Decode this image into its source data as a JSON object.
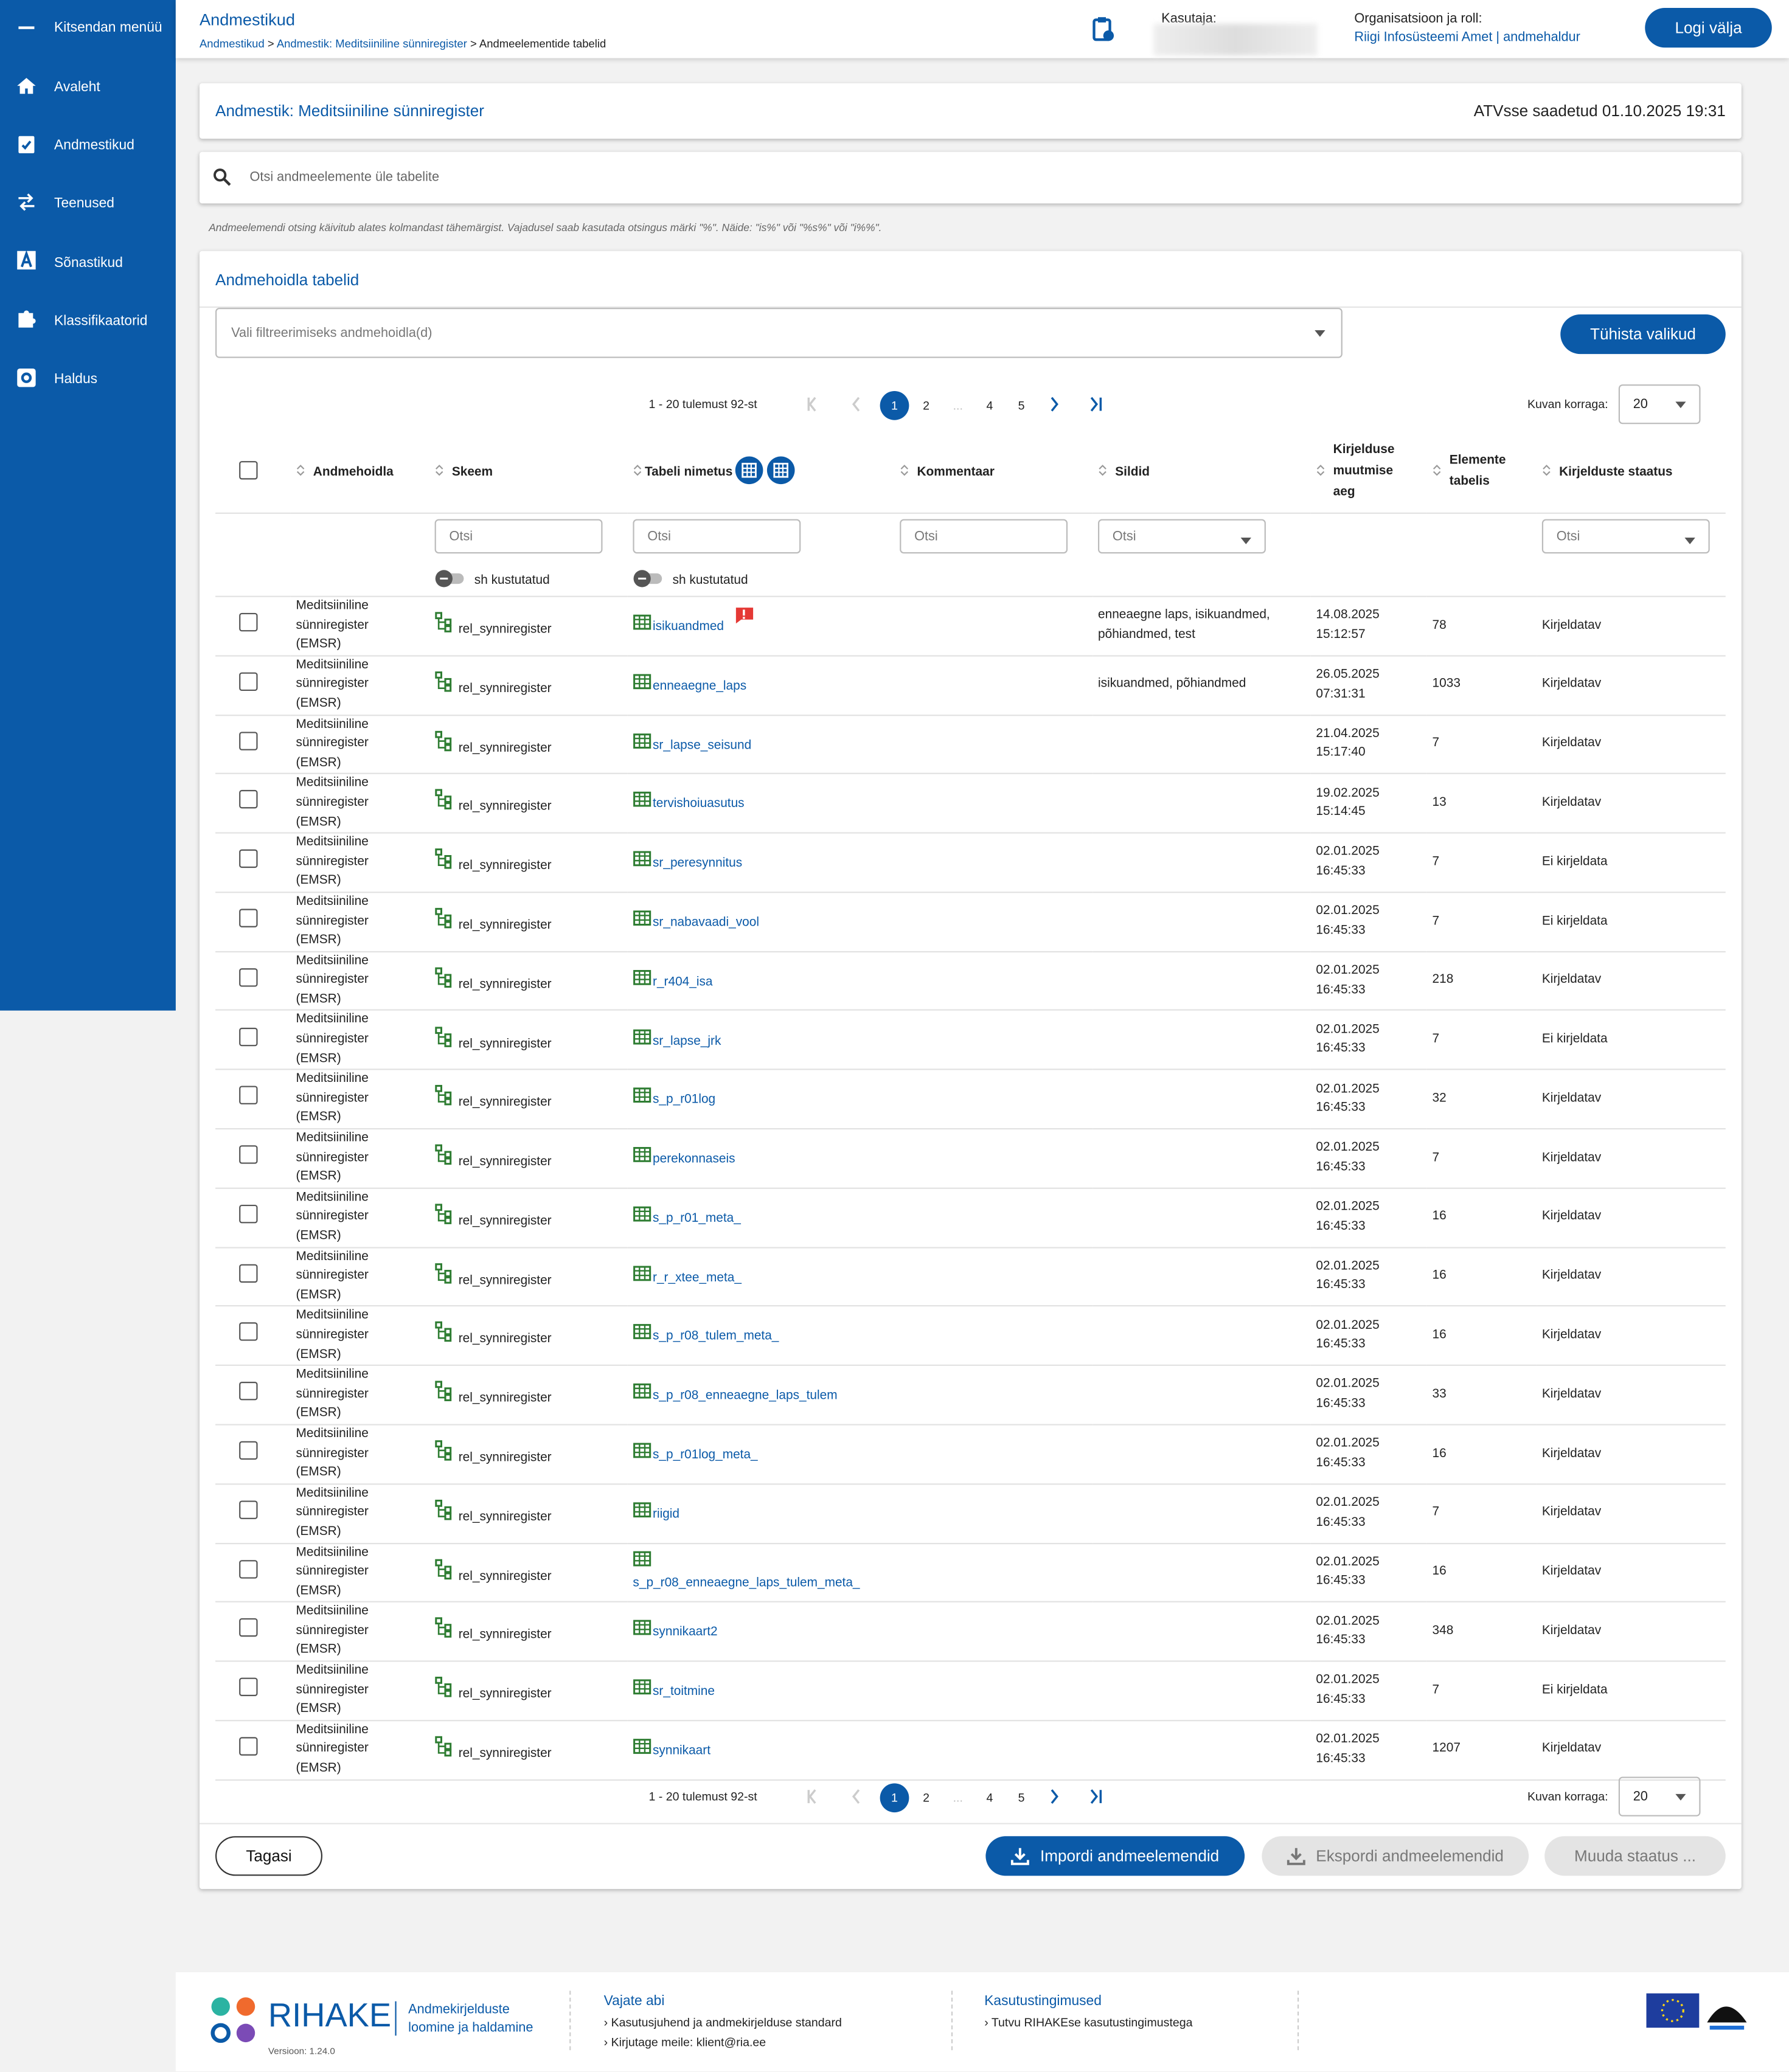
{
  "sidebar": {
    "toggle": "Kitsendan menüü",
    "items": [
      "Avaleht",
      "Andmestikud",
      "Teenused",
      "Sõnastikud",
      "Klassifikaatorid",
      "Haldus"
    ]
  },
  "header": {
    "title": "Andmestikud",
    "breadcrumbs": [
      "Andmestikud",
      "Andmestik: Meditsiiniline sünniregister",
      "Andmeelementide tabelid"
    ],
    "breadcrumb_separator": ">",
    "user_label": "Kasutaja:",
    "org_label": "Organisatsioon ja roll:",
    "org_value": "Riigi Infosüsteemi Amet | andmehaldur",
    "logout": "Logi välja"
  },
  "dataset": {
    "title": "Andmestik: Meditsiiniline sünniregister",
    "sent": "ATVsse saadetud 01.10.2025 19:31"
  },
  "search": {
    "placeholder": "Otsi andmeelemente üle tabelite",
    "hint": "Andmeelemendi otsing käivitub alates kolmandast tähemärgist. Vajadusel saab kasutada otsingus märki \"%\". Näide: \"is%\" või \"%s%\" või \"i%%\"."
  },
  "tables_panel": {
    "title": "Andmehoidla tabelid",
    "filter_placeholder": "Vali filtreerimiseks andmehoidla(d)",
    "clear": "Tühista valikud",
    "pagination": {
      "summary": "1 - 20 tulemust 92-st",
      "pages": [
        "1",
        "2",
        "...",
        "4",
        "5"
      ],
      "per_page_label": "Kuvan korraga:",
      "per_page": "20"
    },
    "columns": [
      "Andmehoidla",
      "Skeem",
      "Tabeli nimetus",
      "Kommentaar",
      "Sildid",
      "Kirjelduse muutmise aeg",
      "Elemente tabelis",
      "Kirjelduste staatus"
    ],
    "search_placeholder": "Otsi",
    "toggle_label": "sh kustutatud",
    "rows": [
      {
        "store": "Meditsiiniline sünniregister (EMSR)",
        "schema": "rel_synniregister",
        "table": "isikuandmed",
        "tags": "enneaegne laps, isikuandmed, põhiandmed, test",
        "modified": "14.08.2025 15:12:57",
        "elements": 78,
        "status": "Kirjeldatav"
      },
      {
        "store": "Meditsiiniline sünniregister (EMSR)",
        "schema": "rel_synniregister",
        "table": "enneaegne_laps",
        "tags": "isikuandmed, põhiandmed",
        "modified": "26.05.2025 07:31:31",
        "elements": 1033,
        "status": "Kirjeldatav"
      },
      {
        "store": "Meditsiiniline sünniregister (EMSR)",
        "schema": "rel_synniregister",
        "table": "sr_lapse_seisund",
        "modified": "21.04.2025 15:17:40",
        "elements": 7,
        "status": "Kirjeldatav"
      },
      {
        "store": "Meditsiiniline sünniregister (EMSR)",
        "schema": "rel_synniregister",
        "table": "tervishoiuasutus",
        "modified": "19.02.2025 15:14:45",
        "elements": 13,
        "status": "Kirjeldatav"
      },
      {
        "store": "Meditsiiniline sünniregister (EMSR)",
        "schema": "rel_synniregister",
        "table": "sr_peresynnitus",
        "modified": "02.01.2025 16:45:33",
        "elements": 7,
        "status": "Ei kirjeldata"
      },
      {
        "store": "Meditsiiniline sünniregister (EMSR)",
        "schema": "rel_synniregister",
        "table": "sr_nabavaadi_vool",
        "modified": "02.01.2025 16:45:33",
        "elements": 7,
        "status": "Ei kirjeldata"
      },
      {
        "store": "Meditsiiniline sünniregister (EMSR)",
        "schema": "rel_synniregister",
        "table": "r_r404_isa",
        "modified": "02.01.2025 16:45:33",
        "elements": 218,
        "status": "Kirjeldatav"
      },
      {
        "store": "Meditsiiniline sünniregister (EMSR)",
        "schema": "rel_synniregister",
        "table": "sr_lapse_jrk",
        "modified": "02.01.2025 16:45:33",
        "elements": 7,
        "status": "Ei kirjeldata"
      },
      {
        "store": "Meditsiiniline sünniregister (EMSR)",
        "schema": "rel_synniregister",
        "table": "s_p_r01log",
        "modified": "02.01.2025 16:45:33",
        "elements": 32,
        "status": "Kirjeldatav"
      },
      {
        "store": "Meditsiiniline sünniregister (EMSR)",
        "schema": "rel_synniregister",
        "table": "perekonnaseis",
        "modified": "02.01.2025 16:45:33",
        "elements": 7,
        "status": "Kirjeldatav"
      },
      {
        "store": "Meditsiiniline sünniregister (EMSR)",
        "schema": "rel_synniregister",
        "table": "s_p_r01_meta_",
        "modified": "02.01.2025 16:45:33",
        "elements": 16,
        "status": "Kirjeldatav"
      },
      {
        "store": "Meditsiiniline sünniregister (EMSR)",
        "schema": "rel_synniregister",
        "table": "r_r_xtee_meta_",
        "modified": "02.01.2025 16:45:33",
        "elements": 16,
        "status": "Kirjeldatav"
      },
      {
        "store": "Meditsiiniline sünniregister (EMSR)",
        "schema": "rel_synniregister",
        "table": "s_p_r08_tulem_meta_",
        "modified": "02.01.2025 16:45:33",
        "elements": 16,
        "status": "Kirjeldatav"
      },
      {
        "store": "Meditsiiniline sünniregister (EMSR)",
        "schema": "rel_synniregister",
        "table": "s_p_r08_enneaegne_laps_tulem",
        "modified": "02.01.2025 16:45:33",
        "elements": 33,
        "status": "Kirjeldatav"
      },
      {
        "store": "Meditsiiniline sünniregister (EMSR)",
        "schema": "rel_synniregister",
        "table": "s_p_r01log_meta_",
        "modified": "02.01.2025 16:45:33",
        "elements": 16,
        "status": "Kirjeldatav"
      },
      {
        "store": "Meditsiiniline sünniregister (EMSR)",
        "schema": "rel_synniregister",
        "table": "riigid",
        "modified": "02.01.2025 16:45:33",
        "elements": 7,
        "status": "Kirjeldatav"
      },
      {
        "store": "Meditsiiniline sünniregister (EMSR)",
        "schema": "rel_synniregister",
        "table": "s_p_r08_enneaegne_laps_tulem_meta_",
        "modified": "02.01.2025 16:45:33",
        "elements": 16,
        "status": "Kirjeldatav"
      },
      {
        "store": "Meditsiiniline sünniregister (EMSR)",
        "schema": "rel_synniregister",
        "table": "synnikaart2",
        "modified": "02.01.2025 16:45:33",
        "elements": 348,
        "status": "Kirjeldatav"
      },
      {
        "store": "Meditsiiniline sünniregister (EMSR)",
        "schema": "rel_synniregister",
        "table": "sr_toitmine",
        "modified": "02.01.2025 16:45:33",
        "elements": 7,
        "status": "Ei kirjeldata"
      },
      {
        "store": "Meditsiiniline sünniregister (EMSR)",
        "schema": "rel_synniregister",
        "table": "synnikaart",
        "modified": "02.01.2025 16:45:33",
        "elements": 1207,
        "status": "Kirjeldatav"
      }
    ]
  },
  "buttons": {
    "back": "Tagasi",
    "import": "Impordi andmeelemendid",
    "export": "Ekspordi andmeelemendid",
    "status": "Muuda staatus ..."
  },
  "footer": {
    "brand": "RIHAKE",
    "tagline": "Andmekirjelduste loomine ja haldamine",
    "version": "Versioon: 1.24.0",
    "help_title": "Vajate abi",
    "help_links": [
      "Kasutusjuhend ja andmekirjelduse standard",
      "Kirjutage meile: klient@ria.ee"
    ],
    "terms_title": "Kasutustingimused",
    "terms_links": [
      "Tutvu RIHAKEse kasutustingimustega"
    ]
  }
}
